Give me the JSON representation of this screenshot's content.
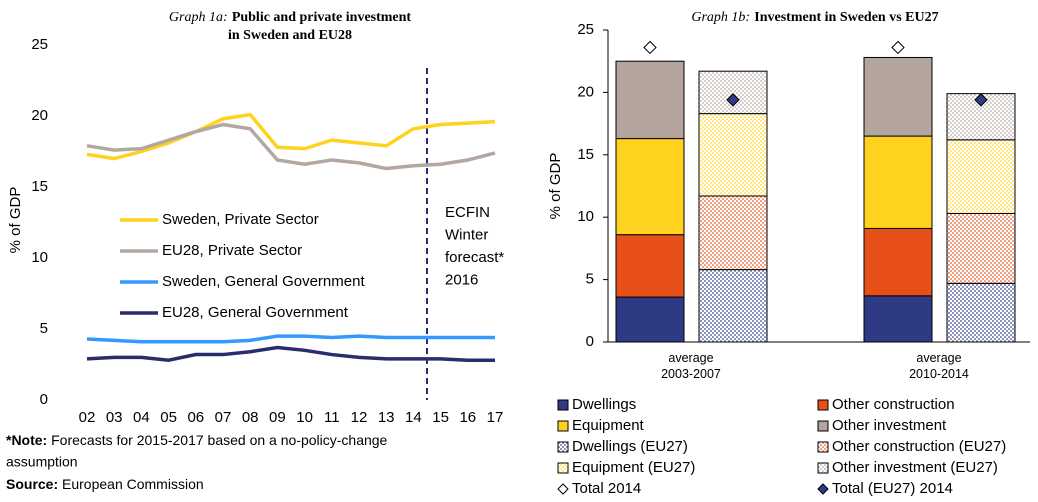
{
  "chart_data": [
    {
      "type": "line",
      "title_prefix": "Graph 1a:",
      "title": [
        "Public and private investment",
        "in Sweden and EU28"
      ],
      "ylabel": "% of GDP",
      "categories": [
        "02",
        "03",
        "04",
        "05",
        "06",
        "07",
        "08",
        "09",
        "10",
        "11",
        "12",
        "13",
        "14",
        "15",
        "16",
        "17"
      ],
      "ylim": [
        0,
        25
      ],
      "yticks": [
        0,
        5,
        10,
        15,
        20,
        25
      ],
      "forecast_start": "15",
      "annotation": [
        "ECFIN",
        "Winter",
        "forecast*",
        "2016"
      ],
      "series": [
        {
          "name": "Sweden, Private Sector",
          "color": "#ffd21f",
          "values": [
            17.3,
            17.0,
            17.5,
            18.1,
            18.9,
            19.8,
            20.1,
            17.8,
            17.7,
            18.3,
            18.1,
            17.9,
            19.1,
            19.4,
            19.5,
            19.6
          ]
        },
        {
          "name": "EU28, Private Sector",
          "color": "#b3a7a1",
          "values": [
            17.9,
            17.6,
            17.7,
            18.3,
            18.9,
            19.4,
            19.1,
            16.9,
            16.6,
            16.9,
            16.7,
            16.3,
            16.5,
            16.6,
            16.9,
            17.4
          ]
        },
        {
          "name": "Sweden, General Government",
          "color": "#3399ff",
          "values": [
            4.3,
            4.2,
            4.1,
            4.1,
            4.1,
            4.1,
            4.2,
            4.5,
            4.5,
            4.4,
            4.5,
            4.4,
            4.4,
            4.4,
            4.4,
            4.4
          ]
        },
        {
          "name": "EU28, General Government",
          "color": "#2b2c6b",
          "values": [
            2.9,
            3.0,
            3.0,
            2.8,
            3.2,
            3.2,
            3.4,
            3.7,
            3.5,
            3.2,
            3.0,
            2.9,
            2.9,
            2.9,
            2.8,
            2.8
          ]
        }
      ],
      "note_label": "*Note:",
      "note": [
        "Forecasts for 2015-2017 based on a no-policy-change",
        "assumption"
      ],
      "source_label": "Source:",
      "source": "European Commission"
    },
    {
      "type": "stacked_bar",
      "title_prefix": "Graph 1b:",
      "title": "Investment in Sweden vs EU27",
      "ylabel": "% of GDP",
      "categories": [
        "average 2003-2007",
        "average 2010-2014"
      ],
      "ylim": [
        0,
        25
      ],
      "yticks": [
        0,
        5,
        10,
        15,
        20,
        25
      ],
      "series": [
        {
          "name": "Dwellings",
          "color": "#2e3a84",
          "stack": 0,
          "pattern": false,
          "values": [
            3.6,
            3.7
          ]
        },
        {
          "name": "Other construction",
          "color": "#e8501a",
          "stack": 0,
          "pattern": false,
          "values": [
            5.0,
            5.4
          ]
        },
        {
          "name": "Equipment",
          "color": "#ffd21f",
          "stack": 0,
          "pattern": false,
          "values": [
            7.7,
            7.4
          ]
        },
        {
          "name": "Other investment",
          "color": "#b3a59e",
          "stack": 0,
          "pattern": false,
          "values": [
            6.2,
            6.3
          ]
        },
        {
          "name": "Dwellings (EU27)",
          "color": "#2e3a84",
          "stack": 1,
          "pattern": true,
          "values": [
            5.8,
            4.7
          ]
        },
        {
          "name": "Other construction (EU27)",
          "color": "#e8501a",
          "stack": 1,
          "pattern": true,
          "values": [
            5.9,
            5.6
          ]
        },
        {
          "name": "Equipment (EU27)",
          "color": "#ffd21f",
          "stack": 1,
          "pattern": true,
          "values": [
            6.6,
            5.9
          ]
        },
        {
          "name": "Other investment (EU27)",
          "color": "#b3a59e",
          "stack": 1,
          "pattern": true,
          "values": [
            3.4,
            3.7
          ]
        },
        {
          "name": "Total 2014",
          "type": "marker",
          "color": "#ffffff",
          "stack": 0,
          "values": [
            23.6,
            23.6
          ]
        },
        {
          "name": "Total (EU27) 2014",
          "type": "marker",
          "color": "#2e3a84",
          "stack": 1,
          "values": [
            19.4,
            19.4
          ]
        }
      ]
    }
  ]
}
